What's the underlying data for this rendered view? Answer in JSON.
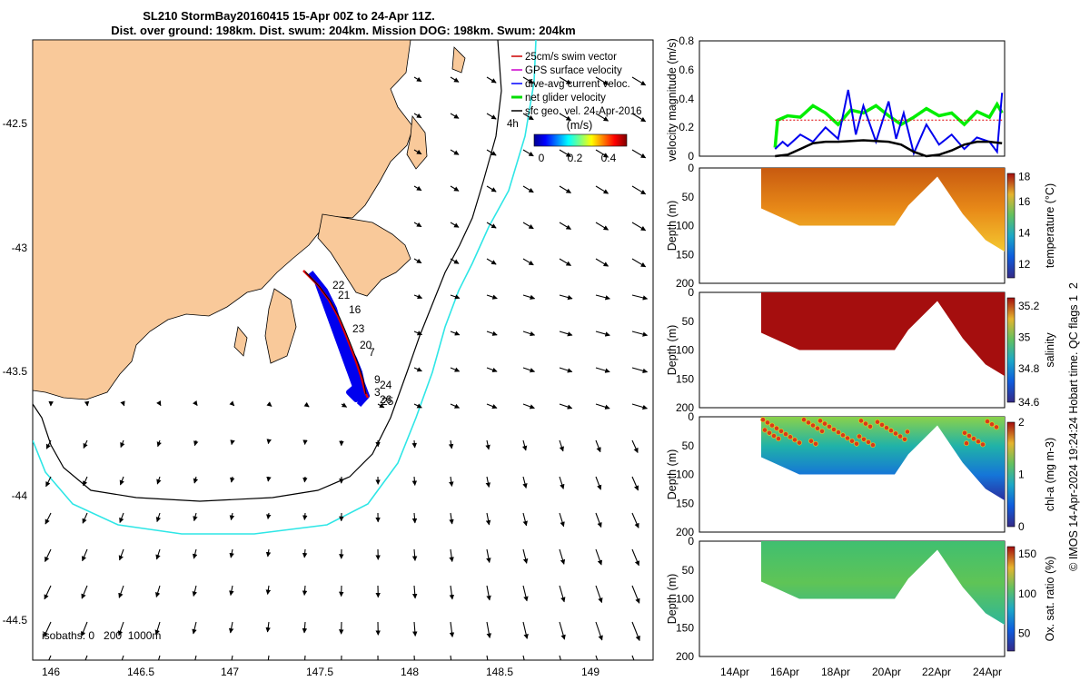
{
  "title": {
    "line1": "SL210 StormBay20160415 15-Apr 00Z to 24-Apr 11Z.",
    "line2": "Dist. over ground: 198km. Dist. swum: 204km. Mission DOG: 198km. Swum: 204km"
  },
  "map": {
    "lon_ticks": [
      "146",
      "146.5",
      "147",
      "147.5",
      "148",
      "148.5",
      "149"
    ],
    "lat_ticks": [
      "-42.5",
      "-43",
      "-43.5",
      "-44",
      "-44.5"
    ],
    "legend": [
      {
        "label": "25cm/s swim vector",
        "color": "#cc0000"
      },
      {
        "label": "GPS surface velocity",
        "color": "#cc00cc"
      },
      {
        "label": "dive-avg current veloc.",
        "color": "#0000ff"
      },
      {
        "label": "net glider velocity",
        "color": "#00dd00"
      },
      {
        "label": "sfc geo. vel. 24-Apr-2016",
        "color": "#000000"
      }
    ],
    "colorbar": {
      "title": "(m/s)",
      "ticks": [
        "0",
        "0.2",
        "0.4"
      ]
    },
    "isobaths_label": "isobaths: 0   200  1000m",
    "corner_label": "4h",
    "track_labels": [
      "22",
      "21",
      "16",
      "23",
      "20",
      "7",
      "9",
      "24",
      "3",
      "26",
      "25"
    ],
    "colors": {
      "land": "#f9c99a",
      "isobath200": "#000000",
      "isobath1000": "#2ee6e6",
      "track": "#e00000",
      "currents": "#0000ff"
    }
  },
  "chart_data": [
    {
      "type": "line",
      "title": "",
      "ylabel": "velocity magnitude (m/s)",
      "ylim": [
        0,
        0.8
      ],
      "yticks": [
        "0",
        "0.2",
        "0.4",
        "0.6",
        "0.8"
      ],
      "x_day_range": [
        12.5,
        24.6
      ],
      "series": [
        {
          "name": "net glider velocity",
          "color": "#00ee00",
          "x": [
            15.5,
            15.6,
            16.0,
            16.5,
            17.0,
            17.5,
            18.0,
            18.5,
            19.0,
            19.5,
            20.0,
            20.5,
            21.0,
            21.5,
            22.0,
            22.5,
            23.0,
            23.5,
            24.0,
            24.3,
            24.5
          ],
          "y": [
            0.06,
            0.25,
            0.28,
            0.27,
            0.35,
            0.3,
            0.22,
            0.32,
            0.3,
            0.35,
            0.28,
            0.22,
            0.27,
            0.33,
            0.28,
            0.3,
            0.22,
            0.31,
            0.27,
            0.36,
            0.3
          ]
        },
        {
          "name": "dive-avg current veloc.",
          "color": "#0000ee",
          "x": [
            15.5,
            15.8,
            16.0,
            16.5,
            17.0,
            17.5,
            18.0,
            18.4,
            18.7,
            19.0,
            19.5,
            20.0,
            20.3,
            20.6,
            21.0,
            21.5,
            22.0,
            22.5,
            23.0,
            23.5,
            24.0,
            24.3,
            24.5
          ],
          "y": [
            0.05,
            0.1,
            0.07,
            0.15,
            0.1,
            0.2,
            0.12,
            0.46,
            0.15,
            0.35,
            0.1,
            0.38,
            0.12,
            0.3,
            0.02,
            0.22,
            0.08,
            0.15,
            0.05,
            0.13,
            0.1,
            0.03,
            0.44
          ]
        },
        {
          "name": "sfc geo. vel.",
          "color": "#000000",
          "x": [
            15.5,
            16.0,
            16.5,
            17.0,
            17.5,
            18.0,
            19.0,
            20.0,
            20.5,
            21.0,
            21.5,
            22.0,
            22.5,
            23.0,
            23.5,
            24.0,
            24.5
          ],
          "y": [
            0.0,
            0.01,
            0.05,
            0.09,
            0.1,
            0.1,
            0.11,
            0.1,
            0.08,
            0.03,
            0.0,
            0.01,
            0.04,
            0.08,
            0.1,
            0.1,
            0.09
          ]
        },
        {
          "name": "25cm/s swim vector",
          "color": "#dd0000",
          "x": [
            15.5,
            24.5
          ],
          "y": [
            0.25,
            0.25
          ]
        }
      ]
    },
    {
      "type": "heatmap",
      "ylabel": "Depth (m)",
      "cbar_label": "temperature (°C)",
      "ylim": [
        200,
        0
      ],
      "yticks": [
        "0",
        "50",
        "100",
        "150",
        "200"
      ],
      "cbar_ticks": [
        "12",
        "14",
        "16",
        "18"
      ]
    },
    {
      "type": "heatmap",
      "ylabel": "Depth (m)",
      "cbar_label": "salinity",
      "ylim": [
        200,
        0
      ],
      "yticks": [
        "0",
        "50",
        "100",
        "150",
        "200"
      ],
      "cbar_ticks": [
        "34.6",
        "34.8",
        "35",
        "35.2"
      ]
    },
    {
      "type": "heatmap",
      "ylabel": "Depth (m)",
      "cbar_label": "chl-a (mg m-3)",
      "ylim": [
        200,
        0
      ],
      "yticks": [
        "0",
        "50",
        "100",
        "150",
        "200"
      ],
      "cbar_ticks": [
        "0",
        "1",
        "2"
      ]
    },
    {
      "type": "heatmap",
      "ylabel": "Depth (m)",
      "cbar_label": "Ox. sat. ratio (%)",
      "ylim": [
        200,
        0
      ],
      "yticks": [
        "0",
        "50",
        "100",
        "150",
        "200"
      ],
      "cbar_ticks": [
        "50",
        "100",
        "150"
      ]
    }
  ],
  "x_axis_ticks": [
    "14Apr",
    "16Apr",
    "18Apr",
    "20Apr",
    "22Apr",
    "24Apr"
  ],
  "credit": "© IMOS 14-Apr-2024 19:24:24 Hobart time. QC flags 1  2"
}
